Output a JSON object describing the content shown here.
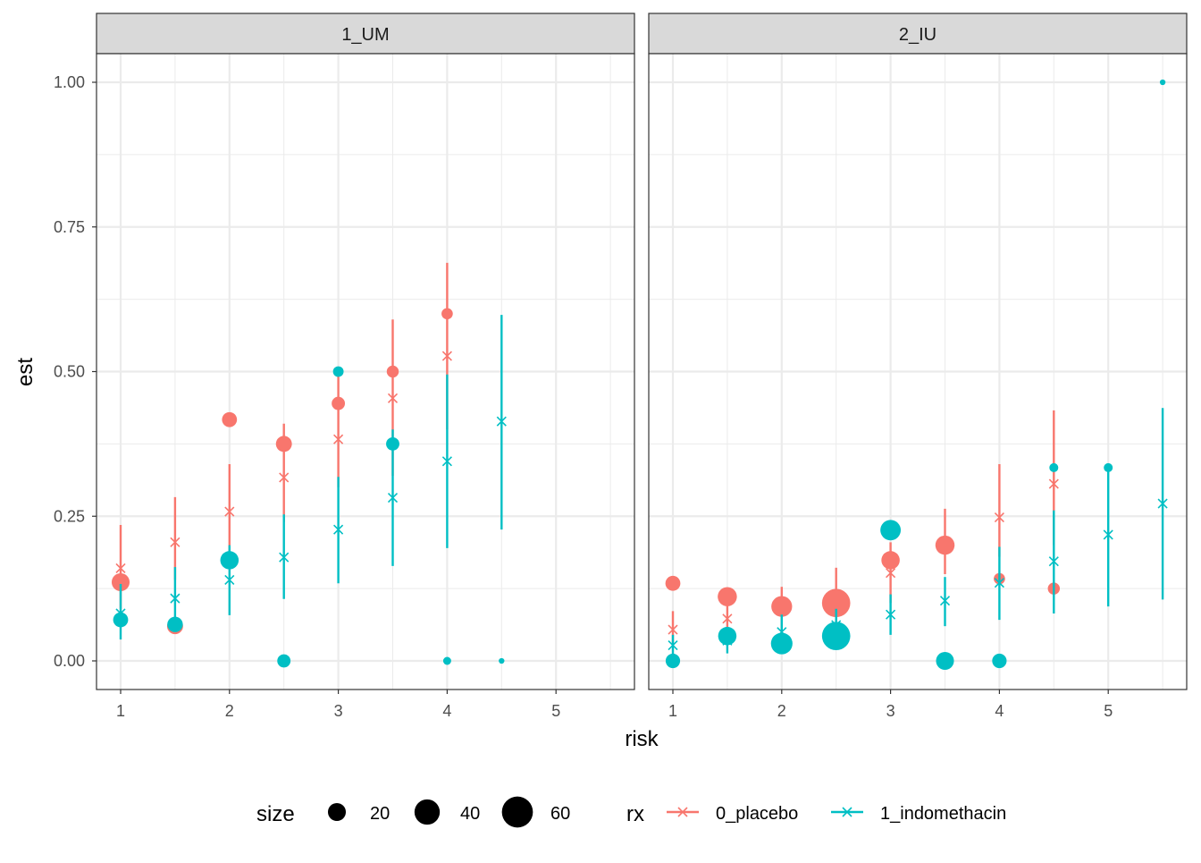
{
  "chart_data": {
    "type": "scatter",
    "xlabel": "risk",
    "ylabel": "est",
    "xlim": [
      0.78,
      5.72
    ],
    "ylim": [
      -0.05,
      1.05
    ],
    "x_ticks": [
      1,
      2,
      3,
      4,
      5
    ],
    "y_ticks": [
      0.0,
      0.25,
      0.5,
      0.75,
      1.0
    ],
    "y_tick_labels": [
      "0.00",
      "0.25",
      "0.50",
      "0.75",
      "1.00"
    ],
    "grid": true,
    "legend_position": "bottom",
    "size_legend": {
      "title": "size",
      "values": [
        20,
        40,
        60
      ]
    },
    "color_legend": {
      "title": "rx",
      "entries": [
        "0_placebo",
        "1_indomethacin"
      ]
    },
    "colors": {
      "0_placebo": "#F8766D",
      "1_indomethacin": "#00BFC4"
    },
    "panels": [
      {
        "label": "1_UM",
        "series": [
          {
            "name": "0_placebo",
            "estimates": [
              {
                "x": 1,
                "est": 0.16,
                "lower": 0.09,
                "upper": 0.235
              },
              {
                "x": 1.5,
                "est": 0.205,
                "lower": 0.14,
                "upper": 0.283
              },
              {
                "x": 2,
                "est": 0.258,
                "lower": 0.19,
                "upper": 0.34
              },
              {
                "x": 2.5,
                "est": 0.317,
                "lower": 0.24,
                "upper": 0.41
              },
              {
                "x": 3,
                "est": 0.383,
                "lower": 0.3,
                "upper": 0.496
              },
              {
                "x": 3.5,
                "est": 0.454,
                "lower": 0.32,
                "upper": 0.59
              },
              {
                "x": 4,
                "est": 0.527,
                "lower": 0.4,
                "upper": 0.688
              }
            ],
            "observed": [
              {
                "x": 1,
                "y": 0.136,
                "size": 20
              },
              {
                "x": 1.5,
                "y": 0.06,
                "size": 16
              },
              {
                "x": 2,
                "y": 0.417,
                "size": 14
              },
              {
                "x": 2.5,
                "y": 0.375,
                "size": 16
              },
              {
                "x": 3,
                "y": 0.445,
                "size": 11
              },
              {
                "x": 3.5,
                "y": 0.5,
                "size": 9
              },
              {
                "x": 4,
                "y": 0.6,
                "size": 8
              }
            ]
          },
          {
            "name": "1_indomethacin",
            "estimates": [
              {
                "x": 1,
                "est": 0.082,
                "lower": 0.037,
                "upper": 0.133
              },
              {
                "x": 1.5,
                "est": 0.108,
                "lower": 0.06,
                "upper": 0.162
              },
              {
                "x": 2,
                "est": 0.14,
                "lower": 0.079,
                "upper": 0.2
              },
              {
                "x": 2.5,
                "est": 0.179,
                "lower": 0.107,
                "upper": 0.253
              },
              {
                "x": 3,
                "est": 0.227,
                "lower": 0.134,
                "upper": 0.318
              },
              {
                "x": 3.5,
                "est": 0.282,
                "lower": 0.164,
                "upper": 0.4
              },
              {
                "x": 4,
                "est": 0.345,
                "lower": 0.195,
                "upper": 0.495
              },
              {
                "x": 4.5,
                "est": 0.414,
                "lower": 0.227,
                "upper": 0.598
              }
            ],
            "observed": [
              {
                "x": 1,
                "y": 0.071,
                "size": 14
              },
              {
                "x": 1.5,
                "y": 0.063,
                "size": 15
              },
              {
                "x": 2,
                "y": 0.174,
                "size": 21
              },
              {
                "x": 2.5,
                "y": 0.0,
                "size": 11
              },
              {
                "x": 3,
                "y": 0.5,
                "size": 7
              },
              {
                "x": 3.5,
                "y": 0.375,
                "size": 11
              },
              {
                "x": 4,
                "y": 0.0,
                "size": 4
              },
              {
                "x": 4.5,
                "y": 0.0,
                "size": 2
              }
            ]
          }
        ]
      },
      {
        "label": "2_IU",
        "series": [
          {
            "name": "0_placebo",
            "estimates": [
              {
                "x": 1,
                "est": 0.054,
                "lower": 0.03,
                "upper": 0.086
              },
              {
                "x": 1.5,
                "est": 0.073,
                "lower": 0.03,
                "upper": 0.11
              },
              {
                "x": 2,
                "est": 0.09,
                "lower": 0.05,
                "upper": 0.128
              },
              {
                "x": 2.5,
                "est": 0.115,
                "lower": 0.07,
                "upper": 0.161
              },
              {
                "x": 3,
                "est": 0.152,
                "lower": 0.1,
                "upper": 0.205
              },
              {
                "x": 3.5,
                "est": 0.2,
                "lower": 0.15,
                "upper": 0.263
              },
              {
                "x": 4,
                "est": 0.248,
                "lower": 0.18,
                "upper": 0.34
              },
              {
                "x": 4.5,
                "est": 0.306,
                "lower": 0.2,
                "upper": 0.433
              }
            ],
            "observed": [
              {
                "x": 1,
                "y": 0.134,
                "size": 14
              },
              {
                "x": 1.5,
                "y": 0.111,
                "size": 23
              },
              {
                "x": 2,
                "y": 0.094,
                "size": 27
              },
              {
                "x": 2.5,
                "y": 0.1,
                "size": 50
              },
              {
                "x": 3,
                "y": 0.174,
                "size": 21
              },
              {
                "x": 3.5,
                "y": 0.2,
                "size": 23
              },
              {
                "x": 4,
                "y": 0.142,
                "size": 8
              },
              {
                "x": 4.5,
                "y": 0.125,
                "size": 9
              }
            ]
          },
          {
            "name": "1_indomethacin",
            "estimates": [
              {
                "x": 1,
                "est": 0.027,
                "lower": 0.005,
                "upper": 0.045
              },
              {
                "x": 1.5,
                "est": 0.035,
                "lower": 0.013,
                "upper": 0.05
              },
              {
                "x": 2,
                "est": 0.05,
                "lower": 0.025,
                "upper": 0.08
              },
              {
                "x": 2.5,
                "est": 0.062,
                "lower": 0.035,
                "upper": 0.09
              },
              {
                "x": 3,
                "est": 0.08,
                "lower": 0.045,
                "upper": 0.115
              },
              {
                "x": 3.5,
                "est": 0.104,
                "lower": 0.06,
                "upper": 0.145
              },
              {
                "x": 4,
                "est": 0.135,
                "lower": 0.071,
                "upper": 0.197
              },
              {
                "x": 4.5,
                "est": 0.172,
                "lower": 0.082,
                "upper": 0.26
              },
              {
                "x": 5,
                "est": 0.218,
                "lower": 0.094,
                "upper": 0.334
              },
              {
                "x": 5.5,
                "est": 0.272,
                "lower": 0.106,
                "upper": 0.437
              }
            ],
            "observed": [
              {
                "x": 1,
                "y": 0.0,
                "size": 13
              },
              {
                "x": 1.5,
                "y": 0.043,
                "size": 21
              },
              {
                "x": 2,
                "y": 0.03,
                "size": 29
              },
              {
                "x": 2.5,
                "y": 0.043,
                "size": 50
              },
              {
                "x": 3,
                "y": 0.226,
                "size": 26
              },
              {
                "x": 3.5,
                "y": 0.0,
                "size": 20
              },
              {
                "x": 4,
                "y": 0.0,
                "size": 13
              },
              {
                "x": 4.5,
                "y": 0.334,
                "size": 5
              },
              {
                "x": 5,
                "y": 0.334,
                "size": 5
              },
              {
                "x": 5.5,
                "y": 1.0,
                "size": 2
              }
            ]
          }
        ]
      }
    ]
  }
}
